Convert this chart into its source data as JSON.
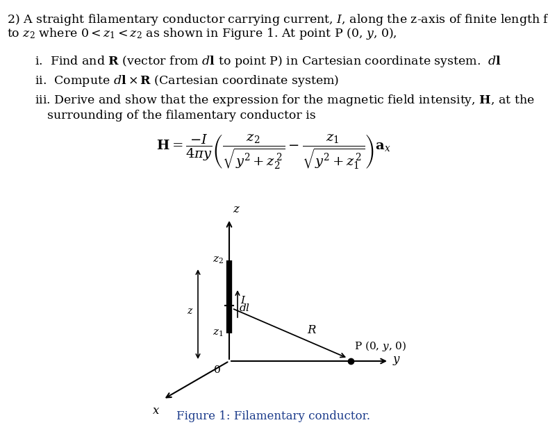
{
  "bg_color": "#ffffff",
  "fig_width": 7.89,
  "fig_height": 6.25,
  "dpi": 100,
  "figure_caption": "Figure 1: Filamentary conductor.",
  "caption_color": "#1a3a8a"
}
